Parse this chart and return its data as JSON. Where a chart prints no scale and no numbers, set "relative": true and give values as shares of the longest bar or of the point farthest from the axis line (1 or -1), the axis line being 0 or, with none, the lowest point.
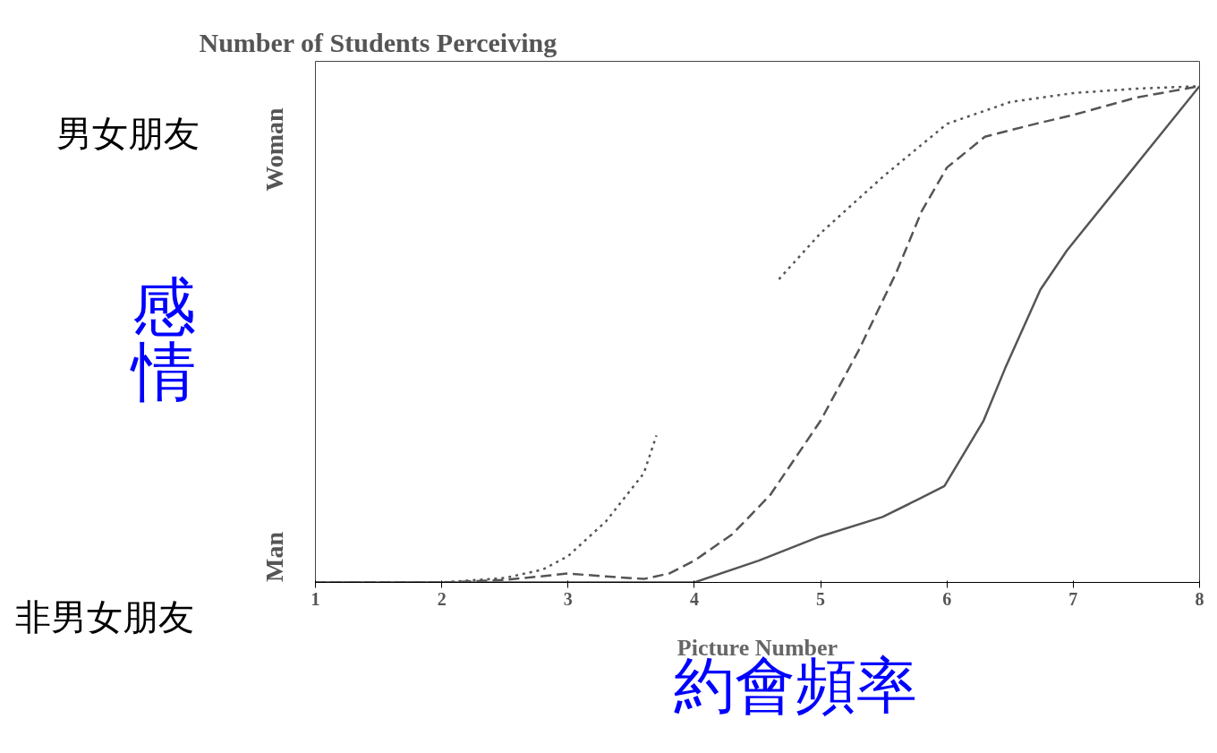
{
  "chart_data": {
    "type": "line",
    "relative": true,
    "title": "Number of Students Perceiving",
    "xlabel": "Picture Number",
    "xlim": [
      1,
      8
    ],
    "xticks": [
      1,
      2,
      3,
      4,
      5,
      6,
      7,
      8
    ],
    "grid": false,
    "marker": "none",
    "tick_labels": "x",
    "annotations": [
      "Woman",
      "Man",
      "男女朋友",
      "非男女朋友",
      "感情",
      "約會頻率"
    ],
    "series": [
      {
        "color": "#555555",
        "line_style": "dotted",
        "x": [
          1,
          2,
          2.5,
          2.8,
          3,
          3.3,
          3.6,
          3.7,
          4.2,
          4.67,
          5,
          5.5,
          6,
          6.5,
          7,
          7.5,
          8
        ],
        "values": [
          0,
          0,
          0.009,
          0.026,
          0.053,
          0.123,
          0.22,
          0.296,
          null,
          0.611,
          0.704,
          0.819,
          0.924,
          0.968,
          0.986,
          0.995,
          1
        ]
      },
      {
        "color": "#555555",
        "line_style": "dashed",
        "x": [
          1,
          2,
          2.5,
          3,
          3.3,
          3.6,
          3.8,
          4,
          4.3,
          4.6,
          5,
          5.3,
          5.6,
          5.8,
          6,
          6.3,
          6.7,
          7,
          7.5,
          8
        ],
        "values": [
          0,
          0,
          0.005,
          0.018,
          0.012,
          0.007,
          0.018,
          0.044,
          0.097,
          0.176,
          0.326,
          0.467,
          0.625,
          0.748,
          0.836,
          0.898,
          0.924,
          0.942,
          0.977,
          1
        ]
      },
      {
        "color": "#555555",
        "line_style": "solid",
        "x": [
          1,
          4,
          4.51,
          5,
          5.49,
          5.77,
          5.98,
          6.29,
          6.46,
          6.74,
          6.95,
          7.48,
          8
        ],
        "values": [
          0,
          0,
          0.044,
          0.093,
          0.132,
          0.167,
          0.194,
          0.326,
          0.431,
          0.59,
          0.669,
          0.836,
          1
        ]
      }
    ]
  }
}
